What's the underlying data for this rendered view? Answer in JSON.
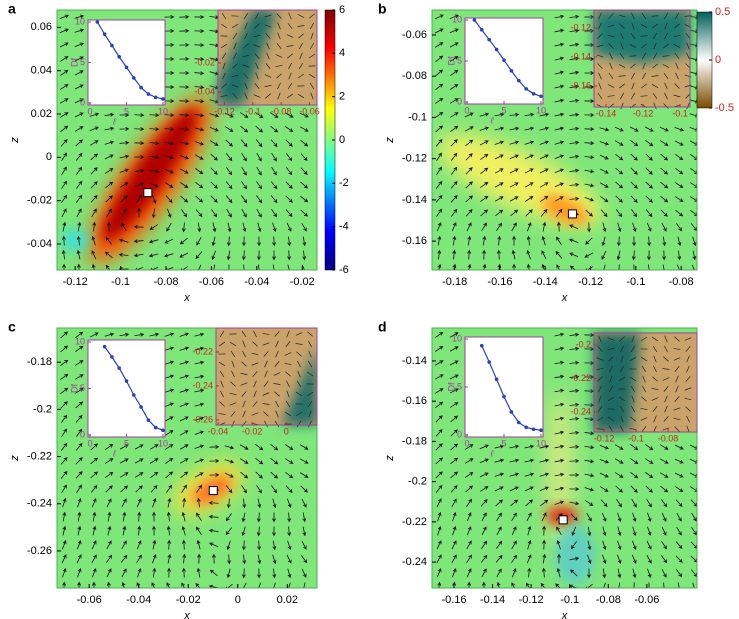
{
  "chart_data": [
    {
      "type": "vector-field",
      "label": "a",
      "xlabel": "x",
      "ylabel": "z",
      "xlim": [
        -0.128,
        -0.0135
      ],
      "ylim": [
        -0.052,
        0.068
      ],
      "xticks": [
        -0.12,
        -0.1,
        -0.08,
        -0.06,
        -0.04,
        -0.02
      ],
      "yticks": [
        -0.04,
        -0.02,
        0,
        0.02,
        0.04,
        0.06
      ],
      "marker": {
        "x": -0.088,
        "y": -0.0163
      },
      "colorbar": {
        "lim": [
          -6,
          6
        ],
        "ticks": [
          -6,
          -4,
          -2,
          0,
          2,
          4,
          6
        ]
      },
      "line_inset": {
        "type": "line",
        "xlabel": "ℓ",
        "ylabel": "Df",
        "color": "#2a3fc0",
        "x": [
          1,
          2,
          3,
          4,
          5,
          6,
          7,
          8,
          9,
          10
        ],
        "values": [
          10,
          8.5,
          7.1,
          5.7,
          4.4,
          3.1,
          1.9,
          1.1,
          0.7,
          0.5
        ],
        "xlim": [
          0,
          10
        ],
        "ylim": [
          0,
          10
        ],
        "xticks": [
          0,
          5,
          10
        ],
        "yticks": [
          0,
          5,
          10
        ]
      },
      "map_inset": {
        "type": "heatmap",
        "xlim": [
          -0.1246,
          -0.0547
        ],
        "ylim": [
          -0.049,
          0.0166
        ],
        "xticks": [
          -0.12,
          -0.1,
          -0.08,
          -0.06
        ],
        "yticks": [
          -0.04,
          -0.02
        ]
      }
    },
    {
      "type": "vector-field",
      "label": "b",
      "xlabel": "x",
      "ylabel": "z",
      "xlim": [
        -0.19,
        -0.073
      ],
      "ylim": [
        -0.174,
        -0.0479
      ],
      "xticks": [
        -0.18,
        -0.16,
        -0.14,
        -0.12,
        -0.1,
        -0.08
      ],
      "yticks": [
        -0.16,
        -0.14,
        -0.12,
        -0.1,
        -0.08,
        -0.06
      ],
      "marker": {
        "x": -0.128,
        "y": -0.1468
      },
      "line_inset": {
        "type": "line",
        "xlabel": "ℓ",
        "ylabel": "Df",
        "color": "#2a3fc0",
        "x": [
          1,
          2,
          3,
          4,
          5,
          6,
          7,
          8,
          9,
          10
        ],
        "values": [
          10,
          8.8,
          7.6,
          6.4,
          5.1,
          3.8,
          2.6,
          1.6,
          1.0,
          0.7
        ],
        "xlim": [
          0,
          10
        ],
        "ylim": [
          0,
          10
        ],
        "xticks": [
          0,
          5,
          10
        ],
        "yticks": [
          0,
          5,
          10
        ]
      },
      "map_inset": {
        "type": "heatmap",
        "xlim": [
          -0.1465,
          -0.0946
        ],
        "ylim": [
          -0.1745,
          -0.1076
        ],
        "xticks": [
          -0.14,
          -0.12,
          -0.1
        ],
        "yticks": [
          -0.16,
          -0.14,
          -0.12
        ],
        "colorbar": {
          "lim": [
            -0.5,
            0.5
          ],
          "ticks": [
            -0.5,
            0,
            0.5
          ]
        }
      }
    },
    {
      "type": "vector-field",
      "label": "c",
      "xlabel": "x",
      "ylabel": "z",
      "xlim": [
        -0.073,
        0.032
      ],
      "ylim": [
        -0.2757,
        -0.1655
      ],
      "xticks": [
        -0.06,
        -0.04,
        -0.02,
        0,
        0.02
      ],
      "yticks": [
        -0.26,
        -0.24,
        -0.22,
        -0.2,
        -0.18
      ],
      "marker": {
        "x": -0.0099,
        "y": -0.2344
      },
      "line_inset": {
        "type": "line",
        "xlabel": "ℓ",
        "ylabel": "Df",
        "color": "#2a3fc0",
        "x": [
          2,
          3,
          4,
          5,
          6,
          7,
          8,
          9,
          10
        ],
        "values": [
          9.5,
          8.4,
          7.2,
          5.8,
          4.3,
          3.0,
          1.6,
          0.8,
          0.5
        ],
        "xlim": [
          0,
          10
        ],
        "ylim": [
          0,
          10
        ],
        "xticks": [
          0,
          5,
          10
        ],
        "yticks": [
          0,
          5,
          10
        ]
      },
      "map_inset": {
        "type": "heatmap",
        "xlim": [
          -0.0412,
          0.018
        ],
        "ylim": [
          -0.263,
          -0.2059
        ],
        "xticks": [
          -0.04,
          -0.02,
          0
        ],
        "yticks": [
          -0.26,
          -0.24,
          -0.22
        ]
      }
    },
    {
      "type": "vector-field",
      "label": "d",
      "xlabel": "x",
      "ylabel": "z",
      "xlim": [
        -0.1714,
        -0.034
      ],
      "ylim": [
        -0.2529,
        -0.1236
      ],
      "xticks": [
        -0.16,
        -0.14,
        -0.12,
        -0.1,
        -0.08,
        -0.06
      ],
      "yticks": [
        -0.24,
        -0.22,
        -0.2,
        -0.18,
        -0.16,
        -0.14
      ],
      "marker": {
        "x": -0.1034,
        "y": -0.219
      },
      "line_inset": {
        "type": "line",
        "xlabel": "ℓ",
        "ylabel": "Df",
        "color": "#2a3fc0",
        "x": [
          2,
          3,
          4,
          5,
          6,
          7,
          8,
          9,
          10
        ],
        "values": [
          9.3,
          7.6,
          5.8,
          4.0,
          2.4,
          1.3,
          0.8,
          0.6,
          0.5
        ],
        "xlim": [
          0,
          10
        ],
        "ylim": [
          0,
          10
        ],
        "xticks": [
          0,
          5,
          10
        ],
        "yticks": [
          0,
          5,
          10
        ]
      },
      "map_inset": {
        "type": "heatmap",
        "xlim": [
          -0.1263,
          -0.0619
        ],
        "ylim": [
          -0.252,
          -0.1928
        ],
        "xticks": [
          -0.12,
          -0.1,
          -0.08
        ],
        "yticks": [
          -0.24,
          -0.22,
          -0.2
        ]
      }
    }
  ]
}
